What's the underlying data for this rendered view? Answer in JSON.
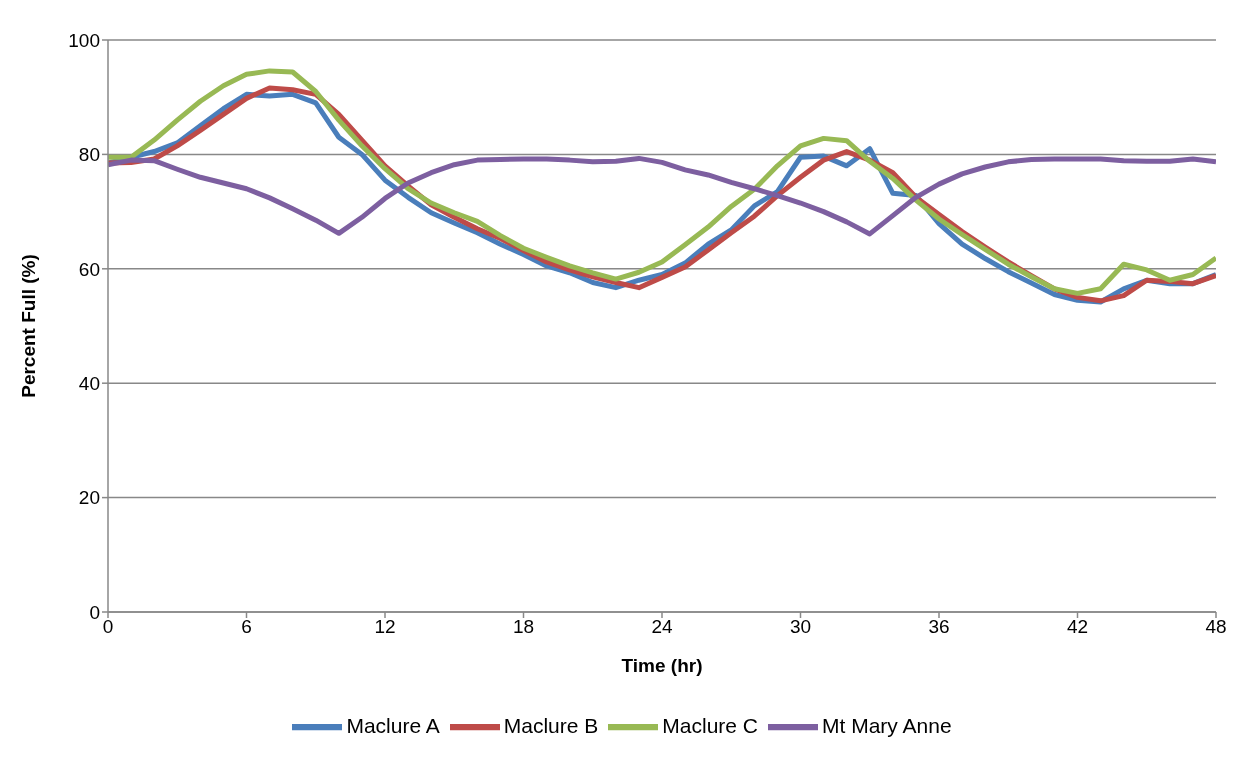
{
  "chart_data": {
    "type": "line",
    "xlabel": "Time (hr)",
    "ylabel": "Percent Full (%)",
    "x": [
      0,
      1,
      2,
      3,
      4,
      5,
      6,
      7,
      8,
      9,
      10,
      11,
      12,
      13,
      14,
      15,
      16,
      17,
      18,
      19,
      20,
      21,
      22,
      23,
      24,
      25,
      26,
      27,
      28,
      29,
      30,
      31,
      32,
      33,
      34,
      35,
      36,
      37,
      38,
      39,
      40,
      41,
      42,
      43,
      44,
      45,
      46,
      47,
      48
    ],
    "xlim": [
      0,
      48
    ],
    "xticks": [
      0,
      6,
      12,
      18,
      24,
      30,
      36,
      42,
      48
    ],
    "ylim": [
      0,
      100
    ],
    "yticks": [
      0,
      20,
      40,
      60,
      80,
      100
    ],
    "grid": "y",
    "legend": "bottom",
    "marker": "none",
    "line_style": "solid",
    "series": [
      {
        "name": "Maclure A",
        "color": "#4a7ebb",
        "values": [
          78.5,
          79.5,
          80.5,
          82,
          85,
          88,
          90.5,
          90.2,
          90.5,
          89,
          83,
          80,
          75.5,
          72.5,
          69.8,
          68,
          66.3,
          64.3,
          62.5,
          60.5,
          59.3,
          57.6,
          56.7,
          58,
          59,
          61,
          64.3,
          66.8,
          71,
          73.5,
          79.5,
          79.7,
          78,
          81,
          73.2,
          72.8,
          67.9,
          64.3,
          61.8,
          59.5,
          57.5,
          55.5,
          54.5,
          54.2,
          56.5,
          58,
          57.4,
          57.4,
          59
        ]
      },
      {
        "name": "Maclure B",
        "color": "#be4b48",
        "values": [
          78.5,
          78.6,
          79.2,
          81.5,
          84.2,
          87,
          89.8,
          91.6,
          91.3,
          90.5,
          87,
          82.5,
          78,
          74.5,
          71.2,
          69,
          67,
          65.3,
          63.2,
          61.2,
          59.8,
          58.6,
          57.6,
          56.7,
          58.5,
          60.3,
          63.3,
          66.3,
          69.2,
          72.8,
          76,
          79,
          80.5,
          79,
          76.8,
          72.5,
          69.5,
          66.5,
          63.8,
          61.2,
          58.8,
          56.5,
          55,
          54.4,
          55.3,
          58,
          57.8,
          57.4,
          58.8
        ]
      },
      {
        "name": "Maclure C",
        "color": "#98b954",
        "values": [
          79.5,
          79.5,
          82.5,
          86,
          89.3,
          92,
          94,
          94.6,
          94.4,
          91,
          86,
          81.5,
          77.5,
          74,
          71.5,
          69.8,
          68.3,
          65.8,
          63.6,
          62,
          60.5,
          59.3,
          58.2,
          59.4,
          61.2,
          64.2,
          67.3,
          70.9,
          73.9,
          78,
          81.5,
          82.8,
          82.4,
          78.8,
          75.8,
          72,
          68.7,
          66,
          63.4,
          60.8,
          58.6,
          56.5,
          55.7,
          56.5,
          60.8,
          59.8,
          58,
          59,
          61.9
        ]
      },
      {
        "name": "Mt Mary Anne",
        "color": "#7d5fa0",
        "values": [
          78.2,
          79,
          78.9,
          77.4,
          76,
          75,
          74,
          72.4,
          70.5,
          68.5,
          66.2,
          69,
          72.3,
          75,
          76.8,
          78.2,
          79,
          79.1,
          79.2,
          79.2,
          79,
          78.7,
          78.8,
          79.3,
          78.6,
          77.3,
          76.4,
          75.1,
          74,
          72.8,
          71.5,
          70,
          68.2,
          66.1,
          69.3,
          72.5,
          74.8,
          76.6,
          77.8,
          78.7,
          79.1,
          79.2,
          79.2,
          79.2,
          78.9,
          78.8,
          78.8,
          79.2,
          78.7
        ]
      }
    ]
  }
}
